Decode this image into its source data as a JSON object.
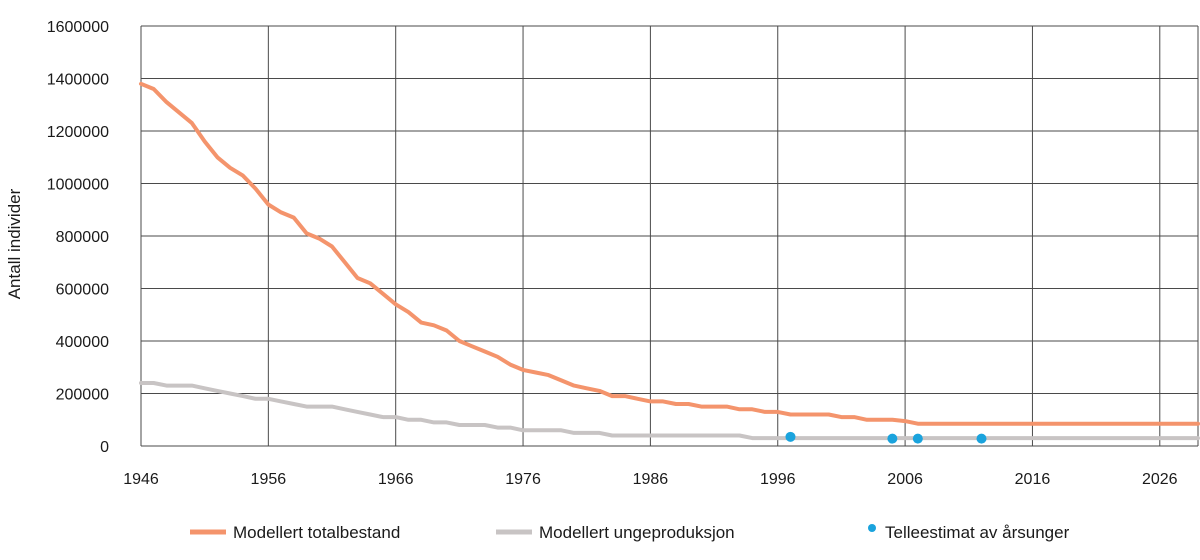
{
  "chart_data": {
    "type": "line",
    "title": "",
    "xlabel": "",
    "ylabel": "Antall individer",
    "xlim": [
      1946,
      2029
    ],
    "ylim": [
      0,
      1600000
    ],
    "x_ticks": [
      "1946",
      "1956",
      "1966",
      "1976",
      "1986",
      "1996",
      "2006",
      "2016",
      "2026"
    ],
    "y_ticks": [
      "1600000",
      "1400000",
      "1200000",
      "1000000",
      "800000",
      "600000",
      "400000",
      "200000",
      "0"
    ],
    "grid": true,
    "legend_position": "bottom",
    "series": [
      {
        "name": "Modellert totalbestand",
        "kind": "line",
        "color": "#f4946c",
        "x": [
          1946,
          1947,
          1948,
          1949,
          1950,
          1951,
          1952,
          1953,
          1954,
          1955,
          1956,
          1957,
          1958,
          1959,
          1960,
          1961,
          1962,
          1963,
          1964,
          1965,
          1966,
          1967,
          1968,
          1969,
          1970,
          1971,
          1972,
          1973,
          1974,
          1975,
          1976,
          1977,
          1978,
          1979,
          1980,
          1981,
          1982,
          1983,
          1984,
          1985,
          1986,
          1987,
          1988,
          1989,
          1990,
          1991,
          1992,
          1993,
          1994,
          1995,
          1996,
          1997,
          1998,
          1999,
          2000,
          2001,
          2002,
          2003,
          2004,
          2005,
          2006,
          2007,
          2029
        ],
        "y": [
          1380000,
          1360000,
          1310000,
          1270000,
          1230000,
          1160000,
          1100000,
          1060000,
          1030000,
          980000,
          920000,
          890000,
          870000,
          810000,
          790000,
          760000,
          700000,
          640000,
          620000,
          580000,
          540000,
          510000,
          470000,
          460000,
          440000,
          400000,
          380000,
          360000,
          340000,
          310000,
          290000,
          280000,
          270000,
          250000,
          230000,
          220000,
          210000,
          190000,
          190000,
          180000,
          170000,
          170000,
          160000,
          160000,
          150000,
          150000,
          150000,
          140000,
          140000,
          130000,
          130000,
          120000,
          120000,
          120000,
          120000,
          110000,
          110000,
          100000,
          100000,
          100000,
          95000,
          85000,
          85000
        ]
      },
      {
        "name": "Modellert ungeproduksjon",
        "kind": "line",
        "color": "#c8c4c4",
        "x": [
          1946,
          1947,
          1948,
          1949,
          1950,
          1951,
          1952,
          1953,
          1954,
          1955,
          1956,
          1957,
          1958,
          1959,
          1960,
          1961,
          1962,
          1963,
          1964,
          1965,
          1966,
          1967,
          1968,
          1969,
          1970,
          1971,
          1972,
          1973,
          1974,
          1975,
          1976,
          1977,
          1978,
          1979,
          1980,
          1981,
          1982,
          1983,
          1984,
          1985,
          1986,
          1987,
          1988,
          1989,
          1990,
          1991,
          1992,
          1993,
          1994,
          1995,
          2029
        ],
        "y": [
          240000,
          240000,
          230000,
          230000,
          230000,
          220000,
          210000,
          200000,
          190000,
          180000,
          180000,
          170000,
          160000,
          150000,
          150000,
          150000,
          140000,
          130000,
          120000,
          110000,
          110000,
          100000,
          100000,
          90000,
          90000,
          80000,
          80000,
          80000,
          70000,
          70000,
          60000,
          60000,
          60000,
          60000,
          50000,
          50000,
          50000,
          40000,
          40000,
          40000,
          40000,
          40000,
          40000,
          40000,
          40000,
          40000,
          40000,
          40000,
          30000,
          30000,
          30000
        ]
      },
      {
        "name": "Telleestimat av årsunger",
        "kind": "scatter",
        "color": "#1aa3dd",
        "x": [
          1997,
          2005,
          2007,
          2012
        ],
        "y": [
          35000,
          28000,
          28000,
          28000
        ]
      }
    ]
  }
}
